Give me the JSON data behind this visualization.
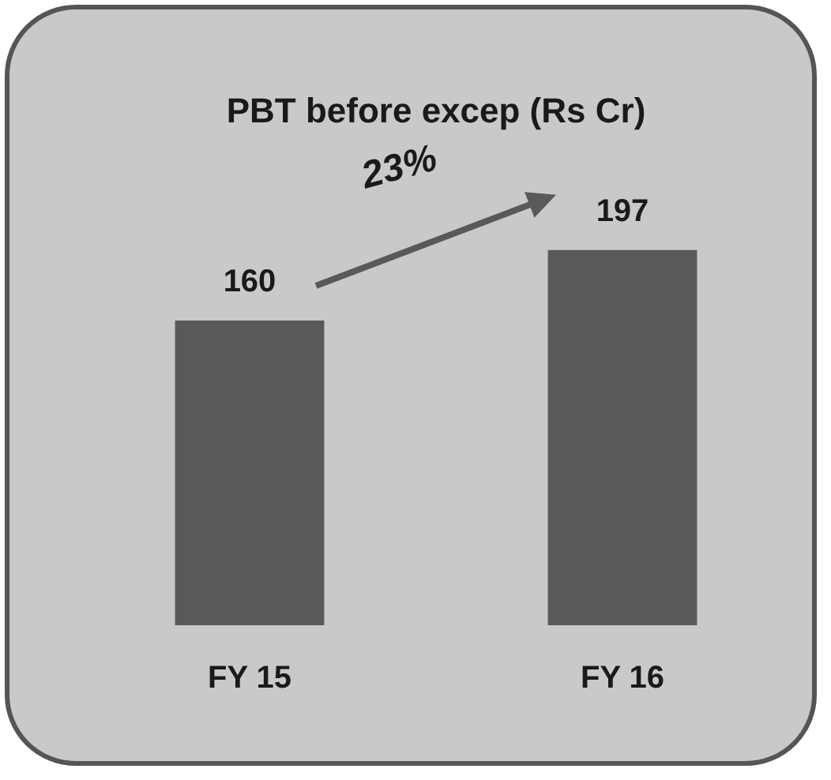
{
  "chart_data": {
    "type": "bar",
    "title": "PBT before excep (Rs Cr)",
    "categories": [
      "FY 15",
      "FY 16"
    ],
    "values": [
      160,
      197
    ],
    "color": "#595959",
    "data_labels": true,
    "grid": false,
    "legend": false,
    "annotations": [
      "23%"
    ]
  }
}
